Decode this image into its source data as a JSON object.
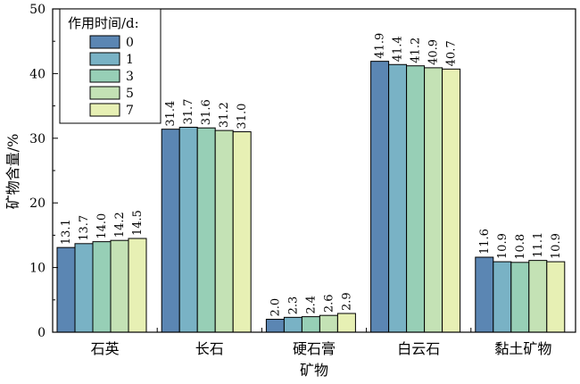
{
  "chart_data": {
    "type": "bar",
    "xlabel": "矿物",
    "ylabel": "矿物含量/%",
    "ylim": [
      0,
      50
    ],
    "yticks": [
      0,
      10,
      20,
      30,
      40,
      50
    ],
    "grid": false,
    "legend": {
      "title": "作用时间/d:",
      "placement": "top-left"
    },
    "categories": [
      "石英",
      "长石",
      "硬石膏",
      "白云石",
      "黏土矿物"
    ],
    "series": [
      {
        "name": "0",
        "color": "#5b86b3",
        "values": [
          13.1,
          31.4,
          2.0,
          41.9,
          11.6
        ]
      },
      {
        "name": "1",
        "color": "#79b2c5",
        "values": [
          13.7,
          31.7,
          2.3,
          41.4,
          10.9
        ]
      },
      {
        "name": "3",
        "color": "#97cfb6",
        "values": [
          14.0,
          31.6,
          2.4,
          41.2,
          10.8
        ]
      },
      {
        "name": "5",
        "color": "#c4e2b5",
        "values": [
          14.2,
          31.2,
          2.6,
          40.9,
          11.1
        ]
      },
      {
        "name": "7",
        "color": "#e7f0b4",
        "values": [
          14.5,
          31.0,
          2.9,
          40.7,
          10.9
        ]
      }
    ]
  }
}
